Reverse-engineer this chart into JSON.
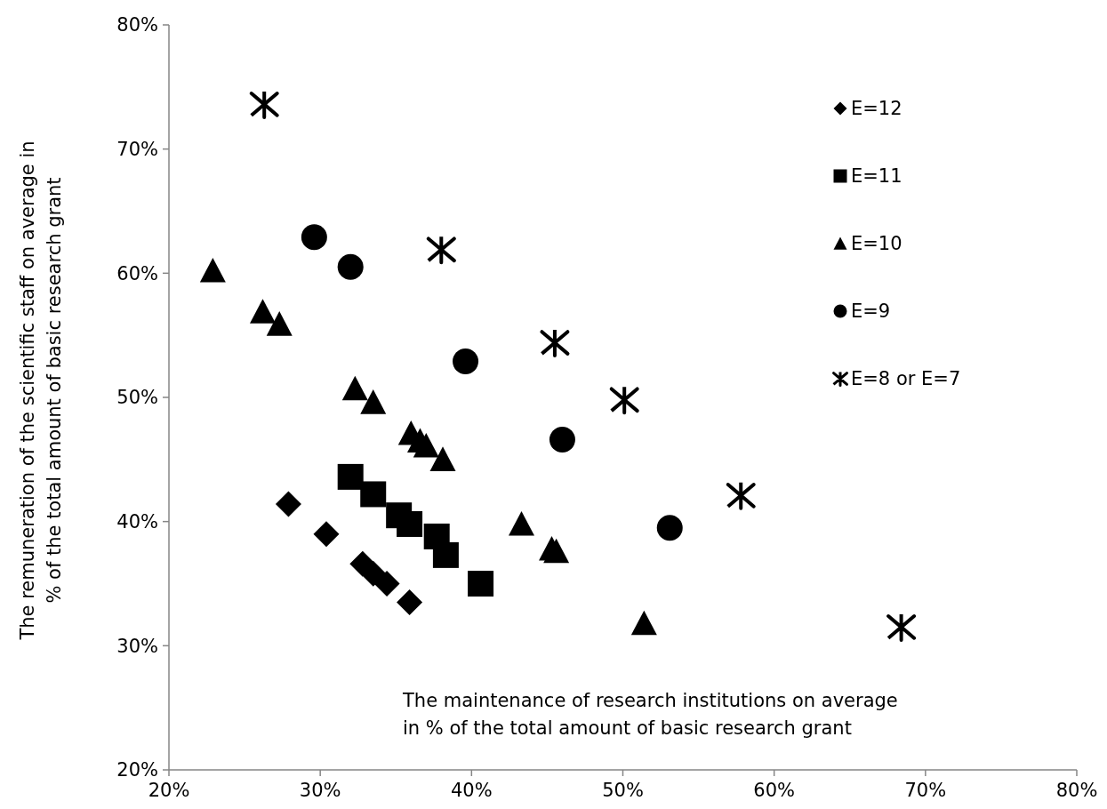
{
  "chart_data": {
    "type": "scatter",
    "xlabel": "The maintenance of research institutions on average in % of the total amount of basic research grant",
    "ylabel": "The remuneration of the scientific staff on average in % of the total amount of basic research grant",
    "xlim": [
      20,
      80
    ],
    "ylim": [
      20,
      80
    ],
    "xticks": [
      {
        "value": 20,
        "label": "20%"
      },
      {
        "value": 30,
        "label": "30%"
      },
      {
        "value": 40,
        "label": "40%"
      },
      {
        "value": 50,
        "label": "50%"
      },
      {
        "value": 60,
        "label": "60%"
      },
      {
        "value": 70,
        "label": "70%"
      },
      {
        "value": 80,
        "label": "80%"
      }
    ],
    "yticks": [
      {
        "value": 20,
        "label": "20%"
      },
      {
        "value": 30,
        "label": "30%"
      },
      {
        "value": 40,
        "label": "40%"
      },
      {
        "value": 50,
        "label": "50%"
      },
      {
        "value": 60,
        "label": "60%"
      },
      {
        "value": 70,
        "label": "70%"
      },
      {
        "value": 80,
        "label": "80%"
      }
    ],
    "grid": false,
    "legend": "top right",
    "series": [
      {
        "name": "E=12",
        "color": "#000000",
        "marker": "diamond",
        "x": [
          27.9,
          30.4,
          32.8,
          33.5,
          34.4,
          35.9
        ],
        "values": [
          41.4,
          39.0,
          36.6,
          35.8,
          35.0,
          33.5
        ]
      },
      {
        "name": "E=11",
        "color": "#000000",
        "marker": "square",
        "x": [
          32.0,
          33.5,
          35.2,
          35.9,
          37.7,
          38.3,
          40.6
        ],
        "values": [
          43.6,
          42.2,
          40.5,
          39.8,
          38.8,
          37.3,
          35.0
        ]
      },
      {
        "name": "E=10",
        "color": "#000000",
        "marker": "triangle",
        "x": [
          22.9,
          26.2,
          27.3,
          32.3,
          33.5,
          36.0,
          36.6,
          37.0,
          38.1,
          43.3,
          45.3,
          45.6,
          51.4
        ],
        "values": [
          60.2,
          56.9,
          55.9,
          50.7,
          49.6,
          47.1,
          46.5,
          46.1,
          45.0,
          39.8,
          37.8,
          37.6,
          31.8
        ]
      },
      {
        "name": "E=9",
        "color": "#000000",
        "marker": "circle",
        "x": [
          29.6,
          32.0,
          39.6,
          46.0,
          53.1
        ],
        "values": [
          62.9,
          60.5,
          52.9,
          46.6,
          39.5
        ]
      },
      {
        "name": "E=8 or E=7",
        "color": "#000000",
        "marker": "cross",
        "x": [
          26.3,
          38.0,
          45.5,
          50.1,
          57.8,
          68.4
        ],
        "values": [
          73.6,
          61.9,
          54.4,
          49.8,
          42.1,
          31.5
        ]
      }
    ]
  }
}
